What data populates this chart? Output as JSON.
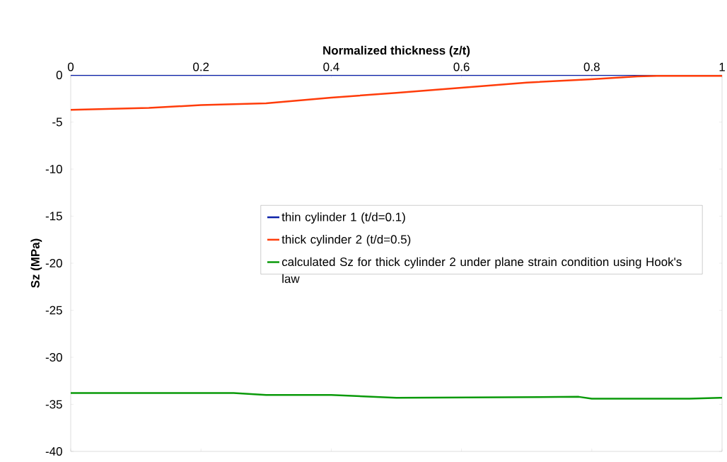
{
  "chart_data": {
    "type": "line",
    "xlabel": "Normalized thickness (z/t)",
    "ylabel": "Sz (MPa)",
    "xlim": [
      0,
      1
    ],
    "ylim": [
      -40,
      0
    ],
    "xticks": [
      0,
      0.2,
      0.4,
      0.6,
      0.8,
      1
    ],
    "yticks": [
      -40,
      -35,
      -30,
      -25,
      -20,
      -15,
      -10,
      -5,
      0
    ],
    "grid": false,
    "legend": "right",
    "marker": "none",
    "line_style": "solid",
    "series": [
      {
        "name": "thin cylinder 1 (t/d=0.1)",
        "color": "#0a1fa8",
        "x": [
          0,
          1
        ],
        "values": [
          0,
          0
        ]
      },
      {
        "name": "thick cylinder 2 (t/d=0.5)",
        "color": "#ff3c0a",
        "x": [
          0,
          0.12,
          0.2,
          0.3,
          0.4,
          0.5,
          0.6,
          0.7,
          0.8,
          0.87,
          0.9,
          1
        ],
        "values": [
          -3.7,
          -3.5,
          -3.2,
          -3.0,
          -2.4,
          -1.9,
          -1.35,
          -0.8,
          -0.45,
          -0.15,
          -0.1,
          -0.1
        ]
      },
      {
        "name": "calculated Sz for thick cylinder 2 under plane strain condition using Hook's law",
        "color": "#0a9a0a",
        "x": [
          0,
          0.25,
          0.3,
          0.4,
          0.5,
          0.78,
          0.8,
          0.95,
          1
        ],
        "values": [
          -33.8,
          -33.8,
          -34.0,
          -34.0,
          -34.3,
          -34.2,
          -34.4,
          -34.4,
          -34.3
        ]
      }
    ]
  }
}
